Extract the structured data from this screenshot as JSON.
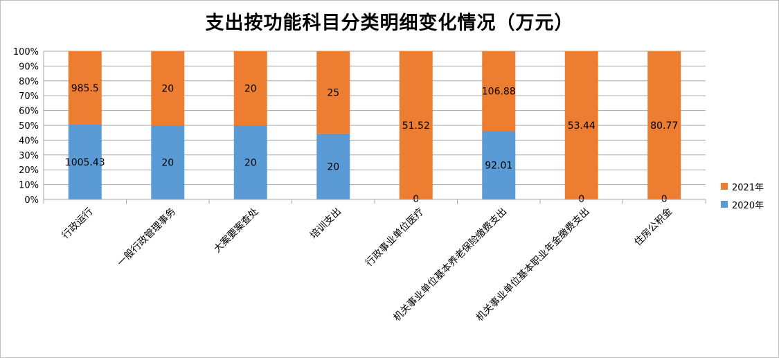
{
  "chart_data": {
    "type": "bar",
    "stacked": "percent",
    "title": "支出按功能科目分类明细变化情况（万元）",
    "categories": [
      "行政运行",
      "一般行政管理事务",
      "大案要案查处",
      "培训支出",
      "行政事业单位医疗",
      "机关事业单位基本养老保险缴费支出",
      "机关事业单位基本职业年金缴费支出",
      "住房公积金"
    ],
    "series": [
      {
        "name": "2020年",
        "color": "#5b9bd5",
        "values": [
          1005.43,
          20,
          20,
          20,
          0,
          92.01,
          0,
          0
        ],
        "labels": [
          "1005.43",
          "20",
          "20",
          "20",
          "0",
          "92.01",
          "0",
          "0"
        ]
      },
      {
        "name": "2021年",
        "color": "#ed7d31",
        "values": [
          985.5,
          20,
          20,
          25,
          51.52,
          106.88,
          53.44,
          80.77
        ],
        "labels": [
          "985.5",
          "20",
          "20",
          "25",
          "51.52",
          "106.88",
          "53.44",
          "80.77"
        ]
      }
    ],
    "y_ticks": [
      "0%",
      "10%",
      "20%",
      "30%",
      "40%",
      "50%",
      "60%",
      "70%",
      "80%",
      "90%",
      "100%"
    ],
    "ylim": [
      0,
      100
    ],
    "grid": true,
    "legend_position": "right"
  }
}
